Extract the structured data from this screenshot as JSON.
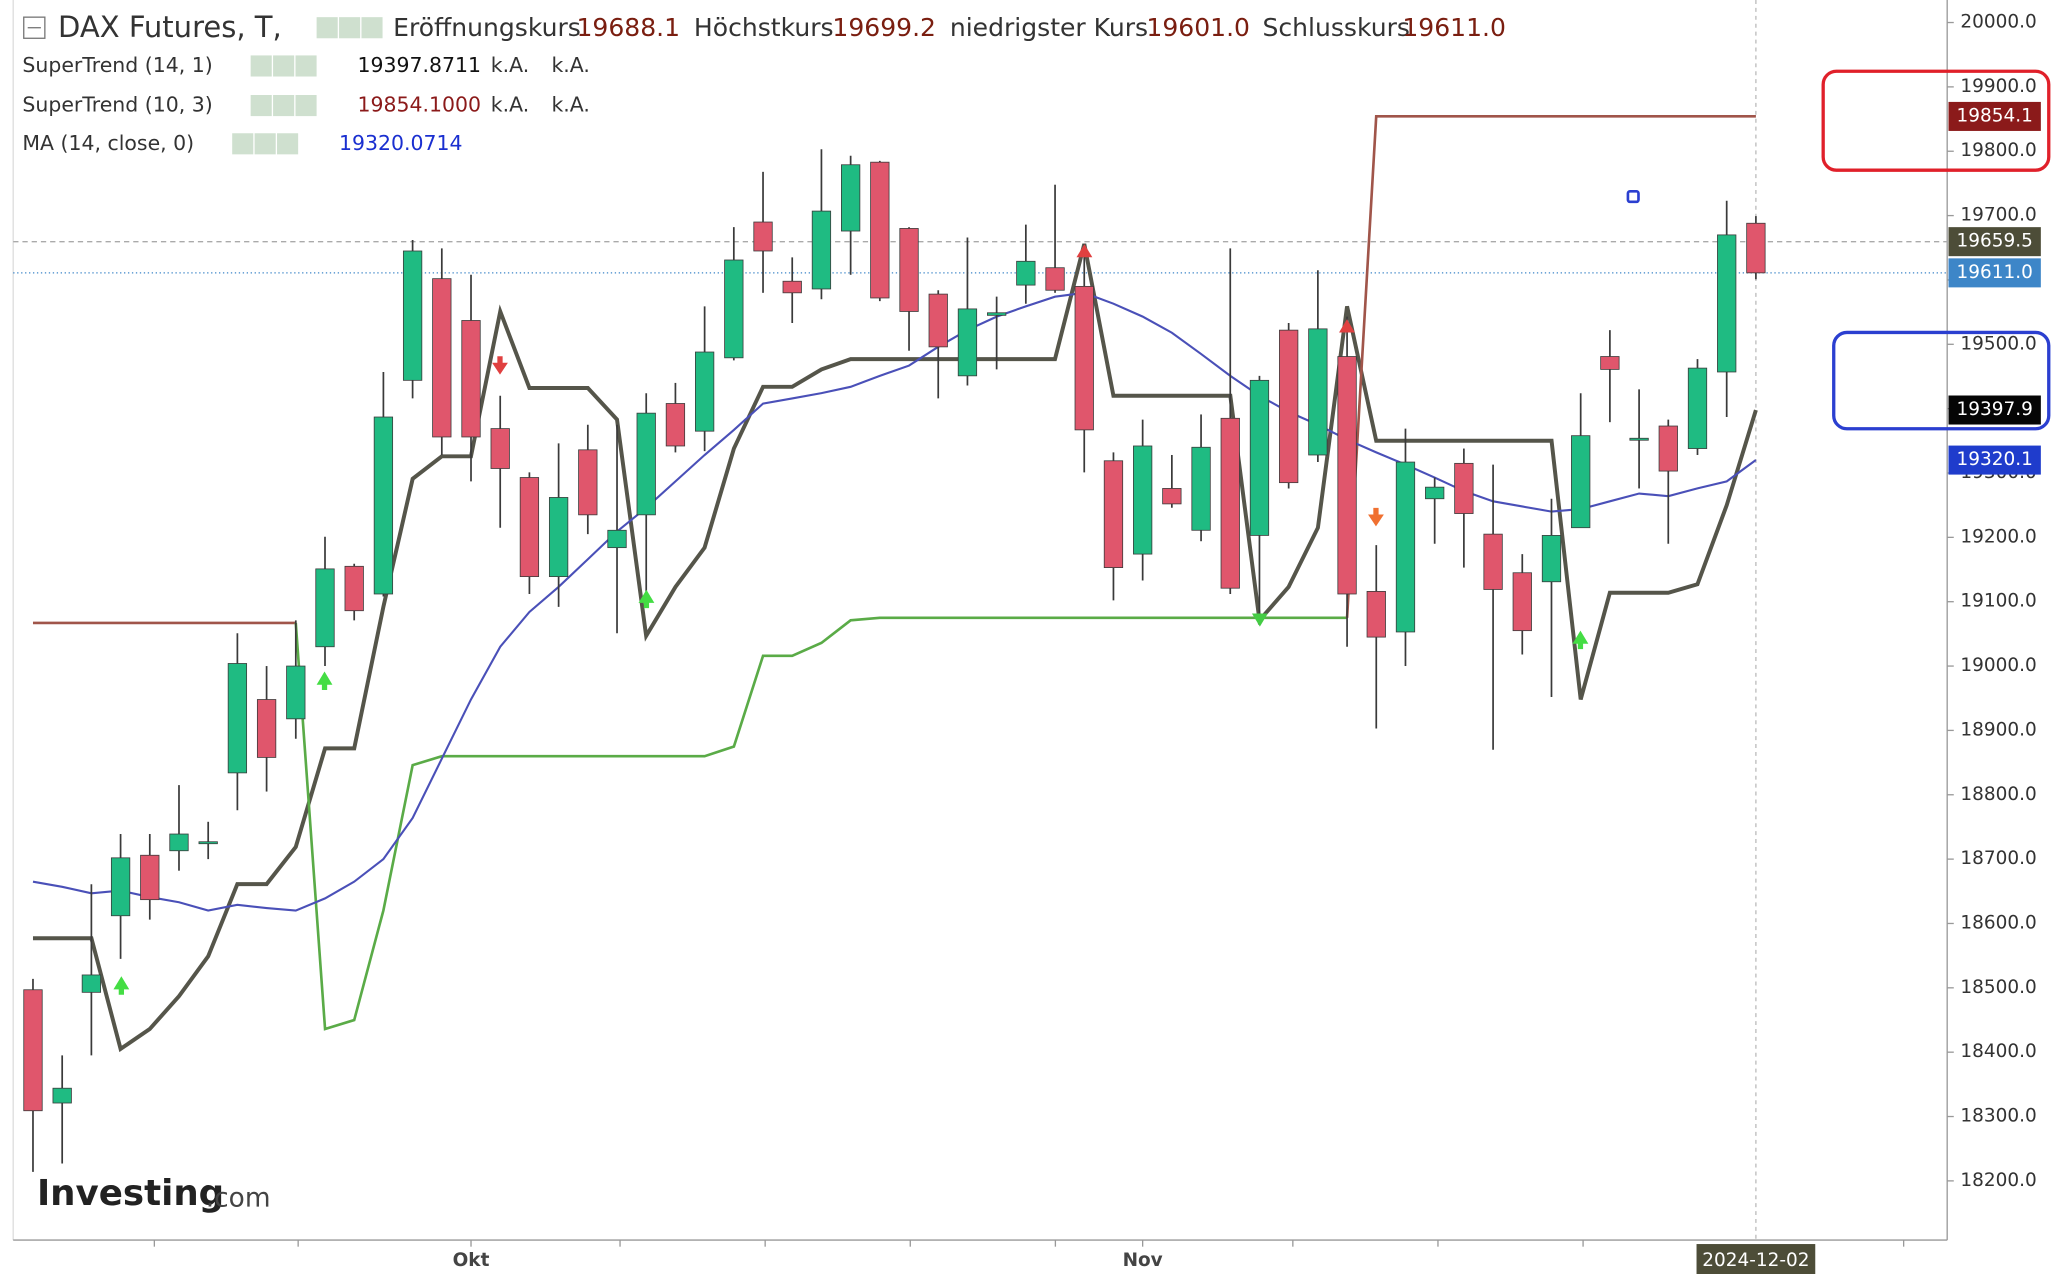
{
  "chart_data": {
    "type": "candlestick",
    "title": "DAX Futures, T,",
    "ohlc_names": [
      "Eröffnungskurs",
      "Höchstkurs",
      "niedrigster Kurs",
      "Schlusskurs"
    ],
    "header_values": [
      "19688.1",
      "19699.2",
      "19601.0",
      "19611.0"
    ],
    "categories": [
      null,
      null,
      null,
      null,
      null,
      null,
      null,
      null,
      null,
      null,
      null,
      null,
      null,
      null,
      null,
      "Okt",
      null,
      null,
      null,
      null,
      null,
      null,
      null,
      null,
      null,
      null,
      null,
      null,
      null,
      null,
      null,
      null,
      null,
      null,
      null,
      null,
      null,
      null,
      "Nov",
      null,
      null,
      null,
      null,
      null,
      null,
      null,
      null,
      null,
      null,
      null,
      null,
      null,
      null,
      null,
      null,
      null,
      null,
      null,
      null,
      "2024-12-02"
    ],
    "open": [
      18497,
      18321,
      18493,
      18612,
      18706,
      18713,
      18725,
      18834,
      18948,
      18918,
      19030,
      19155,
      19112,
      19444,
      19602,
      19537,
      19369,
      19293,
      19139,
      19336,
      19184,
      19235,
      19408,
      19365,
      19479,
      19690,
      19598,
      19586,
      19676,
      19783,
      19680,
      19578,
      19451,
      19545,
      19592,
      19619,
      19590,
      19319,
      19174,
      19276,
      19211,
      19385,
      19203,
      19522,
      19328,
      19481,
      19116,
      19053,
      19260,
      19315,
      19205,
      19145,
      19131,
      19215,
      19481,
      19352,
      19373,
      19338,
      19457,
      19688.1
    ],
    "high": [
      18514,
      18395,
      18661,
      18739,
      18739,
      18815,
      18758,
      19051,
      19000,
      19071,
      19201,
      19159,
      19457,
      19662,
      19649,
      19608,
      19420,
      19301,
      19346,
      19375,
      19375,
      19424,
      19440,
      19559,
      19682,
      19768,
      19635,
      19803,
      19793,
      19785,
      19682,
      19584,
      19666,
      19574,
      19686,
      19748,
      19656,
      19332,
      19383,
      19328,
      19391,
      19649,
      19451,
      19533,
      19615,
      19543,
      19188,
      19369,
      19293,
      19338,
      19313,
      19174,
      19260,
      19424,
      19522,
      19430,
      19383,
      19477,
      19723,
      19699.2
    ],
    "low": [
      18214,
      18227,
      18395,
      18545,
      18606,
      18682,
      18700,
      18776,
      18805,
      18887,
      19000,
      19071,
      19108,
      19416,
      19328,
      19287,
      19215,
      19112,
      19092,
      19205,
      19051,
      19092,
      19332,
      19334,
      19475,
      19580,
      19533,
      19570,
      19608,
      19567,
      19490,
      19416,
      19436,
      19461,
      19563,
      19580,
      19301,
      19102,
      19133,
      19246,
      19194,
      19112,
      19071,
      19276,
      19317,
      19030,
      18903,
      19000,
      19190,
      19153,
      18870,
      19018,
      18952,
      19215,
      19379,
      19276,
      19190,
      19328,
      19387,
      19601
    ],
    "close": [
      18309,
      18344,
      18520,
      18702,
      18637,
      18739,
      18727,
      19004,
      18858,
      19000,
      19151,
      19086,
      19387,
      19645,
      19356,
      19356,
      19307,
      19139,
      19262,
      19235,
      19211,
      19393,
      19342,
      19488,
      19631,
      19645,
      19580,
      19707,
      19779,
      19572,
      19551,
      19496,
      19555,
      19549,
      19629,
      19584,
      19367,
      19153,
      19342,
      19252,
      19340,
      19121,
      19444,
      19285,
      19524,
      19112,
      19045,
      19317,
      19278,
      19237,
      19119,
      19055,
      19203,
      19358,
      19461,
      19354,
      19303,
      19463,
      19670,
      19611
    ],
    "up_color": "#1fbb82",
    "down_color": "#e0566c",
    "series": [
      {
        "name": "SuperTrend (14, 1)",
        "color": "#55554a",
        "label_color": "#111111",
        "last_label": "19397.8711",
        "extra": [
          "k.A.",
          "k.A."
        ],
        "values": [
          18577,
          18577,
          18577,
          18405,
          18436,
          18487,
          18549,
          18661,
          18661,
          18719,
          18872,
          18872,
          19092,
          19291,
          19326,
          19326,
          19551,
          19432,
          19432,
          19432,
          19383,
          19047,
          19123,
          19184,
          19338,
          19434,
          19434,
          19461,
          19477,
          19477,
          19477,
          19477,
          19477,
          19477,
          19477,
          19477,
          19656,
          19420,
          19420,
          19420,
          19420,
          19420,
          19071,
          19123,
          19215,
          19559,
          19350,
          19350,
          19350,
          19350,
          19350,
          19350,
          19350,
          18948,
          19114,
          19114,
          19114,
          19127,
          19250,
          19397.8711
        ]
      },
      {
        "name": "SuperTrend (10, 3)",
        "label_color": "#8b1a1a",
        "last_label": "19854.1000",
        "extra": [
          "k.A.",
          "k.A."
        ],
        "values": [
          19067,
          19067,
          19067,
          19067,
          19067,
          19067,
          19067,
          19067,
          19067,
          19067,
          18436,
          18450,
          18620,
          18846,
          18860,
          18860,
          18860,
          18860,
          18860,
          18860,
          18860,
          18860,
          18860,
          18860,
          18875,
          19016,
          19016,
          19036,
          19071,
          19075,
          19075,
          19075,
          19075,
          19075,
          19075,
          19075,
          19075,
          19075,
          19075,
          19075,
          19075,
          19075,
          19075,
          19075,
          19075,
          19075,
          19854.1,
          19854.1,
          19854.1,
          19854.1,
          19854.1,
          19854.1,
          19854.1,
          19854.1,
          19854.1,
          19854.1,
          19854.1,
          19854.1,
          19854.1,
          19854.1
        ],
        "colors": [
          "#a0554a",
          "#a0554a",
          "#a0554a",
          "#a0554a",
          "#a0554a",
          "#a0554a",
          "#a0554a",
          "#a0554a",
          "#a0554a",
          "#a0554a",
          "#5aab47",
          "#5aab47",
          "#5aab47",
          "#5aab47",
          "#5aab47",
          "#5aab47",
          "#5aab47",
          "#5aab47",
          "#5aab47",
          "#5aab47",
          "#5aab47",
          "#5aab47",
          "#5aab47",
          "#5aab47",
          "#5aab47",
          "#5aab47",
          "#5aab47",
          "#5aab47",
          "#5aab47",
          "#5aab47",
          "#5aab47",
          "#5aab47",
          "#5aab47",
          "#5aab47",
          "#5aab47",
          "#5aab47",
          "#5aab47",
          "#5aab47",
          "#5aab47",
          "#5aab47",
          "#5aab47",
          "#5aab47",
          "#5aab47",
          "#5aab47",
          "#5aab47",
          "#5aab47",
          "#a0554a",
          "#a0554a",
          "#a0554a",
          "#a0554a",
          "#a0554a",
          "#a0554a",
          "#a0554a",
          "#a0554a",
          "#a0554a",
          "#a0554a",
          "#a0554a",
          "#a0554a",
          "#a0554a",
          "#a0554a"
        ]
      },
      {
        "name": "MA (14, close, 0)",
        "color": "#4a50b8",
        "label_color": "#1a2fd0",
        "last_label": "19320.0714",
        "values": [
          18665,
          18657,
          18647,
          18651,
          18641,
          18633,
          18620,
          18629,
          18624,
          18620,
          18639,
          18665,
          18700,
          18764,
          18856,
          18948,
          19030,
          19084,
          19123,
          19166,
          19209,
          19246,
          19287,
          19328,
          19367,
          19408,
          19416,
          19424,
          19434,
          19451,
          19467,
          19496,
          19522,
          19543,
          19559,
          19574,
          19580,
          19563,
          19543,
          19518,
          19485,
          19451,
          19420,
          19395,
          19375,
          19352,
          19332,
          19313,
          19293,
          19272,
          19256,
          19248,
          19240,
          19244,
          19256,
          19268,
          19264,
          19276,
          19287,
          19320.0714
        ]
      }
    ],
    "ylim": [
      18108,
      20035
    ],
    "yticks": [
      {
        "value": 18200,
        "label": "18200.0"
      },
      {
        "value": 18300,
        "label": "18300.0"
      },
      {
        "value": 18400,
        "label": "18400.0"
      },
      {
        "value": 18500,
        "label": "18500.0"
      },
      {
        "value": 18600,
        "label": "18600.0"
      },
      {
        "value": 18700,
        "label": "18700.0"
      },
      {
        "value": 18800,
        "label": "18800.0"
      },
      {
        "value": 18900,
        "label": "18900.0"
      },
      {
        "value": 19000,
        "label": "19000.0"
      },
      {
        "value": 19100,
        "label": "19100.0"
      },
      {
        "value": 19200,
        "label": "19200.0"
      },
      {
        "value": 19300,
        "label": "19300.0"
      },
      {
        "value": 19400,
        "label": "19400.0"
      },
      {
        "value": 19500,
        "label": "19500.0"
      },
      {
        "value": 19600,
        "label": "19600.0"
      },
      {
        "value": 19700,
        "label": "19700.0"
      },
      {
        "value": 19800,
        "label": "19800.0"
      },
      {
        "value": 19900,
        "label": "19900.0"
      },
      {
        "value": 20000,
        "label": "20000.0"
      }
    ],
    "price_labels": [
      {
        "value": 19854.1,
        "label": "19854.1",
        "color": "#8b1a1a"
      },
      {
        "value": 19659.5,
        "label": "19659.5",
        "color": "#4d4d38",
        "line": "dashed"
      },
      {
        "value": 19611,
        "label": "19611.0",
        "color": "#3d86c8",
        "line": "dotted"
      },
      {
        "value": 19397.8711,
        "label": "19397.9",
        "color": "#050505"
      },
      {
        "value": 19320.0714,
        "label": "19320.1",
        "color": "#1f3ccc"
      }
    ],
    "watermark": [
      "Investing",
      ".com"
    ]
  }
}
